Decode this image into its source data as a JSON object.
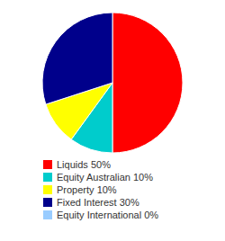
{
  "chart_data": {
    "type": "pie",
    "categories": [
      "Liquids 50%",
      "Equity Australian 10%",
      "Property 10%",
      "Fixed Interest 30%",
      "Equity International 0%"
    ],
    "values": [
      50,
      10,
      10,
      30,
      0
    ],
    "colors": [
      "#ff0000",
      "#00cccc",
      "#ffff00",
      "#00008b",
      "#99ccff"
    ],
    "legend": "bottom"
  }
}
